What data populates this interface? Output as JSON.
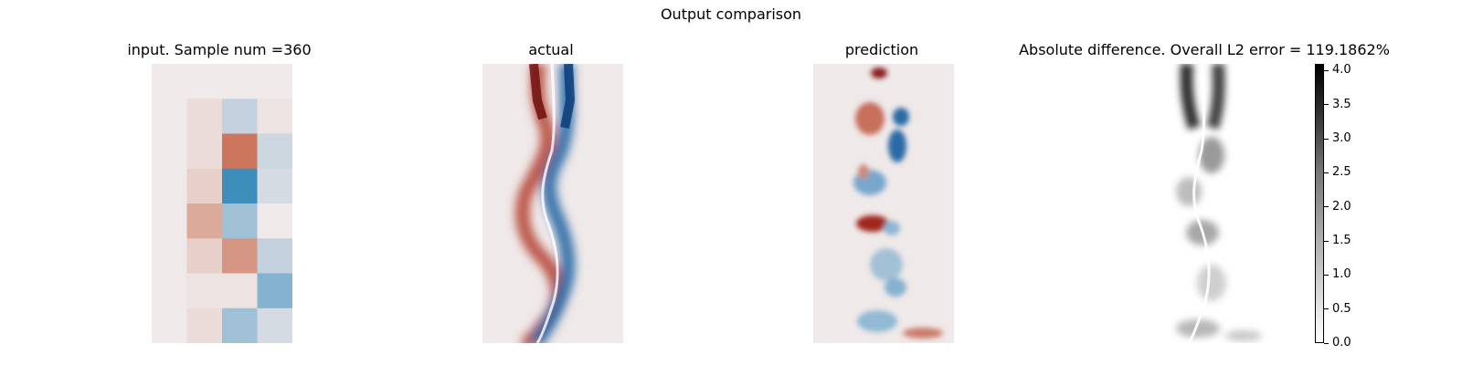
{
  "figure": {
    "suptitle": "Output comparison"
  },
  "panels": [
    {
      "title": "input. Sample num =360"
    },
    {
      "title": "actual"
    },
    {
      "title": "prediction"
    },
    {
      "title": "Absolute difference. Overall L2 error = 119.1862%"
    }
  ],
  "colorbar": {
    "ticks": [
      "0.0",
      "0.5",
      "1.0",
      "1.5",
      "2.0",
      "2.5",
      "3.0",
      "3.5",
      "4.0"
    ],
    "range": [
      0.0,
      4.1
    ]
  },
  "chart_data": [
    {
      "type": "heatmap",
      "title": "input. Sample num =360",
      "grid": "8 rows x 4 cols, diverging colormap (red positive, blue negative)",
      "values": [
        [
          0.0,
          0.0,
          0.0,
          0.0
        ],
        [
          0.0,
          0.1,
          -0.25,
          0.05
        ],
        [
          0.0,
          0.1,
          0.9,
          -0.2
        ],
        [
          0.0,
          0.2,
          -1.0,
          -0.15
        ],
        [
          0.0,
          0.5,
          -0.45,
          0.0
        ],
        [
          0.0,
          0.2,
          0.65,
          -0.25
        ],
        [
          0.0,
          0.05,
          0.05,
          -0.6
        ],
        [
          0.0,
          0.1,
          -0.45,
          -0.15
        ]
      ]
    },
    {
      "type": "heatmap",
      "title": "actual",
      "colormap": "diverging red-blue"
    },
    {
      "type": "heatmap",
      "title": "prediction",
      "colormap": "diverging red-blue"
    },
    {
      "type": "heatmap",
      "title": "Absolute difference. Overall L2 error = 119.1862%",
      "colormap": "gray_r",
      "colorbar_range": [
        0.0,
        4.1
      ],
      "colorbar_ticks": [
        0.0,
        0.5,
        1.0,
        1.5,
        2.0,
        2.5,
        3.0,
        3.5,
        4.0
      ]
    }
  ]
}
